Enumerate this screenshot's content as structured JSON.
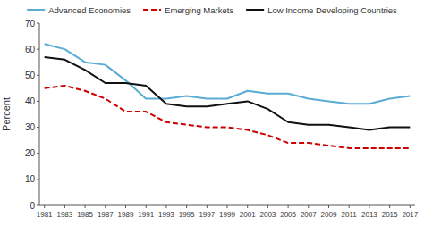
{
  "chart_data": {
    "type": "line",
    "x": [
      1981,
      1983,
      1985,
      1987,
      1989,
      1991,
      1993,
      1995,
      1997,
      1999,
      2001,
      2003,
      2005,
      2007,
      2009,
      2011,
      2013,
      2015,
      2017
    ],
    "series": [
      {
        "name": "Advanced Economies",
        "color": "#5bacd4",
        "line_style": "solid",
        "values": [
          62,
          60,
          55,
          54,
          48,
          41,
          41,
          42,
          41,
          41,
          44,
          43,
          43,
          41,
          40,
          39,
          39,
          41,
          42
        ]
      },
      {
        "name": "Emerging Markets",
        "color": "#cc0000",
        "line_style": "dashed",
        "values": [
          45,
          46,
          44,
          41,
          36,
          36,
          32,
          31,
          30,
          30,
          29,
          27,
          24,
          24,
          23,
          22,
          22,
          22,
          22
        ]
      },
      {
        "name": "Low Income Developing Countries",
        "color": "#111111",
        "line_style": "solid",
        "values": [
          57,
          56,
          52,
          47,
          47,
          46,
          39,
          38,
          38,
          39,
          40,
          37,
          32,
          31,
          31,
          30,
          29,
          30,
          30
        ]
      }
    ],
    "y_label": "Percent",
    "xlim": [
      1980.5,
      2017.5
    ],
    "xticks": [
      1981,
      1983,
      1985,
      1987,
      1989,
      1991,
      1993,
      1995,
      1997,
      1999,
      2001,
      2003,
      2005,
      2007,
      2009,
      2011,
      2013,
      2015,
      2017
    ],
    "ylim": [
      0,
      70
    ],
    "yticks": [
      0,
      10,
      20,
      30,
      40,
      50,
      60,
      70
    ],
    "grid": false,
    "legend": "top"
  }
}
